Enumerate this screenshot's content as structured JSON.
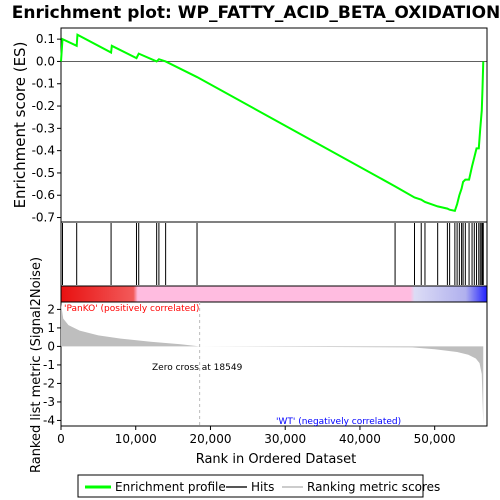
{
  "colors": {
    "enrichment_line": "#00ff00",
    "hit_line": "#000000",
    "metric_fill": "#bebebe",
    "positive_label": "#ff0000",
    "negative_label": "#0000ff",
    "zero_cross_line": "#bbbbbb",
    "band_gradient": [
      "#ff0000",
      "#ff6666",
      "#ffb0d8",
      "#d8d8ff",
      "#0000ff"
    ]
  },
  "chart_data": {
    "type": "line",
    "title": "Enrichment plot: WP_FATTY_ACID_BETA_OXIDATION",
    "xlabel": "Rank in Ordered Dataset",
    "xlim": [
      0,
      57000
    ],
    "x_ticks": [
      0,
      10000,
      20000,
      30000,
      40000,
      50000
    ],
    "x_tick_labels": [
      "0",
      "10,000",
      "20,000",
      "30,000",
      "40,000",
      "50,000"
    ],
    "enrichment": {
      "ylabel": "Enrichment score (ES)",
      "ylim": [
        -0.72,
        0.15
      ],
      "y_ticks": [
        0.1,
        0.0,
        -0.1,
        -0.2,
        -0.3,
        -0.4,
        -0.5,
        -0.6,
        -0.7
      ],
      "y_tick_labels": [
        "0.1",
        "0.0",
        "-0.1",
        "-0.2",
        "-0.3",
        "-0.4",
        "-0.5",
        "-0.6",
        "-0.7"
      ],
      "series": [
        {
          "x": [
            0,
            200,
            2100,
            2200,
            6700,
            6800,
            10100,
            10400,
            12800,
            13100,
            14000,
            18200,
            44700,
            47300,
            48200,
            48700,
            50400,
            51700,
            52000,
            52700,
            53000,
            53300,
            53600,
            53800,
            54100,
            54600,
            55000,
            55300,
            55600,
            55900,
            56100,
            56300,
            56400,
            56500
          ],
          "y": [
            0.0,
            0.1,
            0.07,
            0.12,
            0.04,
            0.07,
            0.015,
            0.035,
            0.0,
            0.01,
            0.0,
            -0.07,
            -0.56,
            -0.61,
            -0.62,
            -0.63,
            -0.65,
            -0.66,
            -0.665,
            -0.67,
            -0.64,
            -0.6,
            -0.57,
            -0.54,
            -0.53,
            -0.53,
            -0.47,
            -0.43,
            -0.39,
            -0.39,
            -0.3,
            -0.22,
            -0.12,
            0.0
          ]
        }
      ]
    },
    "hits": [
      200,
      2100,
      6700,
      10100,
      10400,
      12800,
      13100,
      14000,
      18200,
      44700,
      47300,
      48200,
      48700,
      50400,
      51700,
      52000,
      52700,
      53000,
      53300,
      53600,
      53800,
      54100,
      54600,
      55000,
      55300,
      55600,
      55900,
      56100,
      56300,
      56400,
      56500
    ],
    "metric": {
      "ylabel": "Ranked list metric (Signal2Noise)",
      "ylim": [
        -4.3,
        2.4
      ],
      "y_ticks": [
        2,
        1,
        0,
        -1,
        -2,
        -3,
        -4
      ],
      "y_tick_labels": [
        "2",
        "1",
        "0",
        "-1",
        "-2",
        "-3",
        "-4"
      ],
      "x": [
        0,
        300,
        1000,
        2500,
        5000,
        8000,
        12000,
        16000,
        18549,
        47000,
        50000,
        53000,
        54500,
        55500,
        56000,
        56300,
        56500
      ],
      "y": [
        2.3,
        1.5,
        1.15,
        0.85,
        0.6,
        0.42,
        0.25,
        0.12,
        0.0,
        -0.05,
        -0.15,
        -0.3,
        -0.45,
        -0.65,
        -0.9,
        -1.5,
        -4.2
      ],
      "zero_cross": 18549
    },
    "annotations": {
      "positive": "'PanKO' (positively correlated)",
      "negative": "'WT' (negatively correlated)",
      "zero_cross": "Zero cross at 18549"
    },
    "legend": {
      "position": "bottom",
      "items": [
        "Enrichment profile",
        "Hits",
        "Ranking metric scores"
      ]
    }
  }
}
